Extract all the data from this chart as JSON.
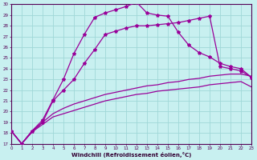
{
  "xlabel": "Windchill (Refroidissement éolien,°C)",
  "background_color": "#c8f0f0",
  "grid_color": "#a0d8d8",
  "line_color": "#990099",
  "xlim": [
    0,
    23
  ],
  "ylim": [
    17,
    30
  ],
  "xticks": [
    0,
    1,
    2,
    3,
    4,
    5,
    6,
    7,
    8,
    9,
    10,
    11,
    12,
    13,
    14,
    15,
    16,
    17,
    18,
    19,
    20,
    21,
    22,
    23
  ],
  "yticks": [
    17,
    18,
    19,
    20,
    21,
    22,
    23,
    24,
    25,
    26,
    27,
    28,
    29,
    30
  ],
  "lineA_x": [
    0,
    1,
    2,
    3,
    4,
    5,
    6,
    7,
    8,
    9,
    10,
    11,
    12,
    13,
    14,
    15,
    16,
    17,
    18,
    19,
    20,
    21,
    22,
    23
  ],
  "lineA_y": [
    18.2,
    17.0,
    18.2,
    19.2,
    21.1,
    23.0,
    25.4,
    27.2,
    28.8,
    29.2,
    29.5,
    29.8,
    30.2,
    29.2,
    29.0,
    28.9,
    27.4,
    26.2,
    25.5,
    25.1,
    24.5,
    24.2,
    24.0,
    23.2
  ],
  "lineB_x": [
    0,
    1,
    2,
    3,
    4,
    5,
    6,
    7,
    8,
    9,
    10,
    11,
    12,
    13,
    14,
    15,
    16,
    17,
    18,
    19,
    20,
    21,
    22,
    23
  ],
  "lineB_y": [
    18.2,
    17.0,
    18.2,
    19.0,
    21.0,
    22.0,
    23.0,
    24.5,
    25.8,
    27.2,
    27.5,
    27.8,
    28.0,
    28.0,
    28.1,
    28.2,
    28.3,
    28.5,
    28.7,
    28.9,
    24.2,
    24.0,
    23.8,
    23.2
  ],
  "lineC_x": [
    0,
    1,
    2,
    3,
    4,
    5,
    6,
    7,
    8,
    9,
    10,
    11,
    12,
    13,
    14,
    15,
    16,
    17,
    18,
    19,
    20,
    21,
    22,
    23
  ],
  "lineC_y": [
    18.2,
    17.0,
    18.1,
    19.0,
    19.8,
    20.3,
    20.7,
    21.0,
    21.3,
    21.6,
    21.8,
    22.0,
    22.2,
    22.4,
    22.5,
    22.7,
    22.8,
    23.0,
    23.1,
    23.3,
    23.4,
    23.5,
    23.5,
    23.3
  ],
  "lineD_x": [
    0,
    1,
    2,
    3,
    4,
    5,
    6,
    7,
    8,
    9,
    10,
    11,
    12,
    13,
    14,
    15,
    16,
    17,
    18,
    19,
    20,
    21,
    22,
    23
  ],
  "lineD_y": [
    18.2,
    17.0,
    18.1,
    18.8,
    19.5,
    19.8,
    20.1,
    20.4,
    20.7,
    21.0,
    21.2,
    21.4,
    21.6,
    21.7,
    21.9,
    22.0,
    22.1,
    22.2,
    22.3,
    22.5,
    22.6,
    22.7,
    22.8,
    22.3
  ]
}
